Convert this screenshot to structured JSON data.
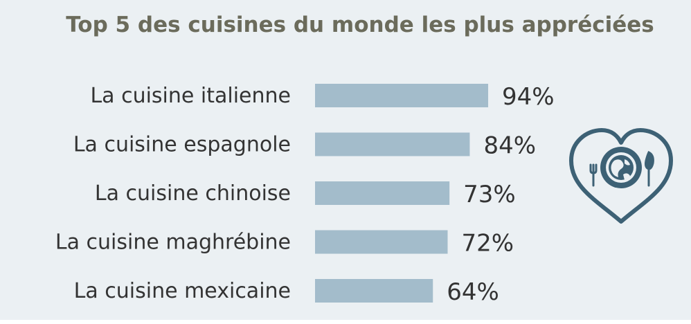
{
  "chart_data": {
    "type": "bar",
    "orientation": "horizontal",
    "title": "Top 5 des cuisines du monde les plus appréciées",
    "categories": [
      "La cuisine italienne",
      "La cuisine espagnole",
      "La cuisine chinoise",
      "La cuisine maghrébine",
      "La cuisine mexicaine"
    ],
    "values": [
      94,
      84,
      73,
      72,
      64
    ],
    "value_labels": [
      "94%",
      "84%",
      "73%",
      "72%",
      "64%"
    ],
    "xlim": [
      0,
      100
    ],
    "grid": false,
    "legend": "none"
  },
  "colors": {
    "bar": "#a3bccb",
    "background": "#ebf0f3",
    "icon": "#3d6175",
    "title": "#6b6b5b"
  },
  "icon": "heart-globe-fork-spoon-icon"
}
